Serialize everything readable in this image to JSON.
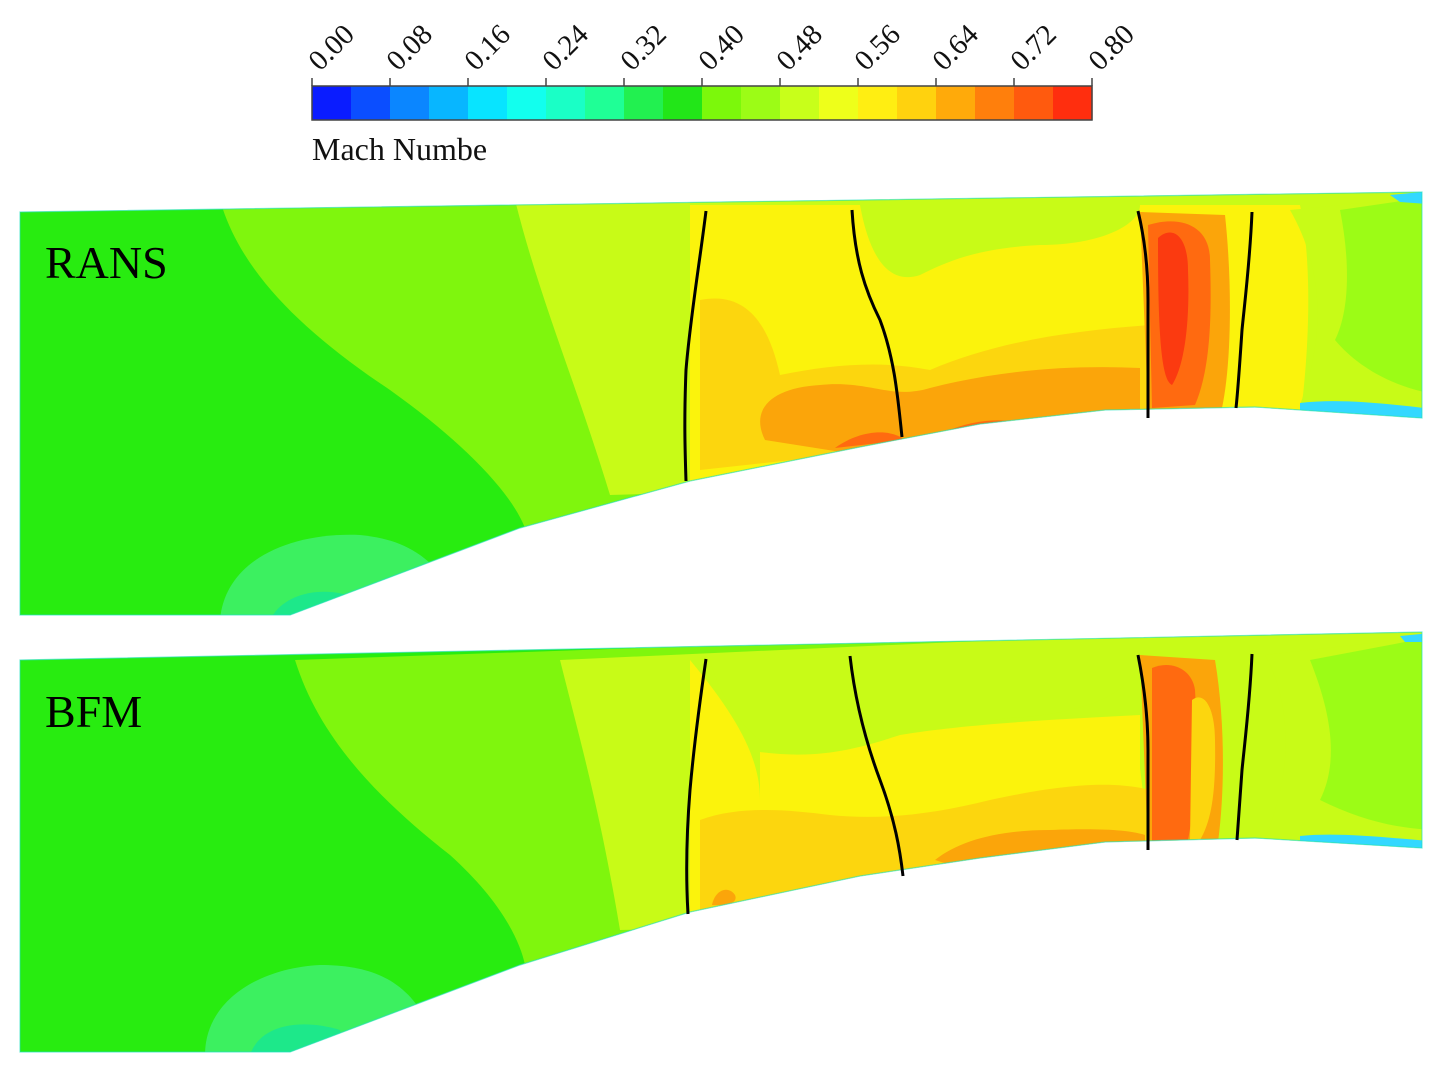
{
  "legend": {
    "title": "Mach Numbe",
    "ticks": [
      "0.00",
      "0.08",
      "0.16",
      "0.24",
      "0.32",
      "0.40",
      "0.48",
      "0.56",
      "0.64",
      "0.72",
      "0.80"
    ],
    "colors": [
      "#0a1cff",
      "#0b4eff",
      "#0b86ff",
      "#08b6ff",
      "#08e4ff",
      "#12ffee",
      "#1affc6",
      "#1fff96",
      "#22f050",
      "#22e618",
      "#7cf80b",
      "#9cfc16",
      "#c8ff1a",
      "#eeff1a",
      "#ffee12",
      "#ffd20e",
      "#ffaa0a",
      "#ff7f0c",
      "#ff5a0e",
      "#ff2e0e"
    ]
  },
  "panels": [
    {
      "label": "RANS"
    },
    {
      "label": "BFM"
    }
  ],
  "field_colors": {
    "green": "#28ec10",
    "lime": "#7ff60d",
    "yellow_green": "#c8fb17",
    "yellow": "#fbf30c",
    "light_orange": "#fcd60e",
    "orange": "#fba50a",
    "red_orange": "#ff6a10",
    "red": "#fb3a10",
    "cyan_green": "#1de88a",
    "edge_cyan": "#33d8ff",
    "blade_line": "#000000"
  }
}
